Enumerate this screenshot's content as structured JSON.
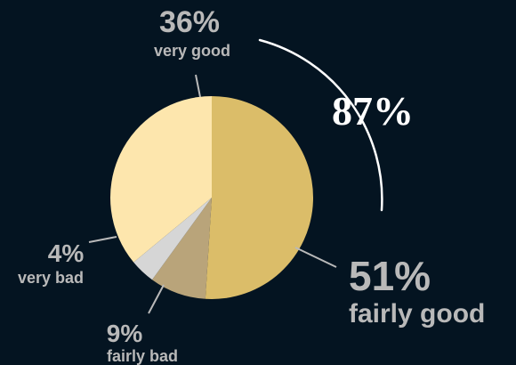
{
  "chart_data": {
    "type": "pie",
    "slices": [
      {
        "label": "fairly good",
        "value": 51,
        "value_label": "51%",
        "color": "#dbbd69"
      },
      {
        "label": "fairly bad",
        "value": 9,
        "value_label": "9%",
        "color": "#b9a47a"
      },
      {
        "label": "very bad",
        "value": 4,
        "value_label": "4%",
        "color": "#d6d6d6"
      },
      {
        "label": "very good",
        "value": 36,
        "value_label": "36%",
        "color": "#fde6ad"
      }
    ],
    "annotation": {
      "text": "87%",
      "arc_color": "#ffffff"
    },
    "background": "#041421",
    "text_color": "#b9b9b9"
  }
}
